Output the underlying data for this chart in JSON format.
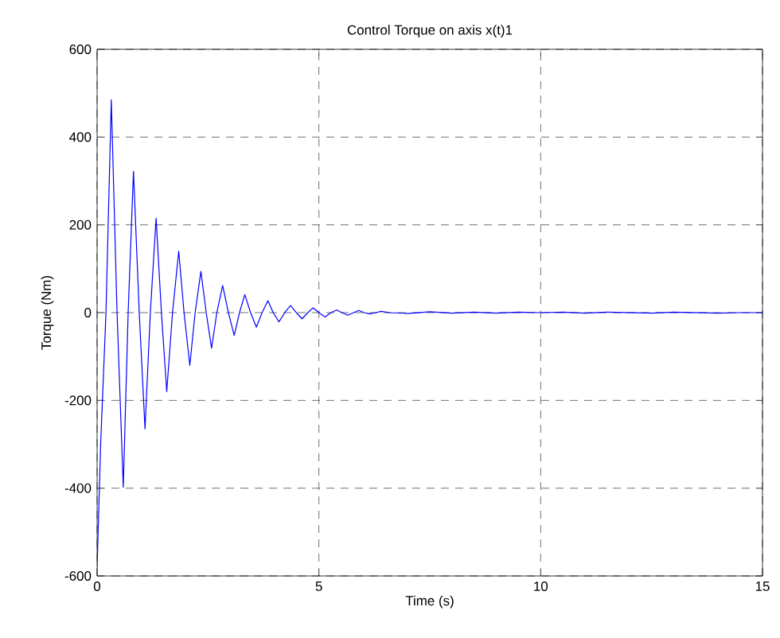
{
  "chart_data": {
    "type": "line",
    "title": "Control Torque on axis x(t)1",
    "xlabel": "Time (s)",
    "ylabel": "Torque (Nm)",
    "xlim": [
      0,
      15
    ],
    "ylim": [
      -600,
      600
    ],
    "xticks": [
      0,
      5,
      10,
      15
    ],
    "yticks": [
      -600,
      -400,
      -200,
      0,
      200,
      400,
      600
    ],
    "grid": true,
    "line_style": "solid",
    "series": [
      {
        "color": "#0000ff",
        "x": [
          0,
          0.08,
          0.2,
          0.32,
          0.45,
          0.59,
          0.7,
          0.82,
          0.95,
          1.08,
          1.2,
          1.33,
          1.45,
          1.57,
          1.7,
          1.84,
          1.96,
          2.09,
          2.21,
          2.34,
          2.46,
          2.58,
          2.7,
          2.83,
          2.96,
          3.09,
          3.21,
          3.33,
          3.46,
          3.59,
          3.72,
          3.85,
          3.97,
          4.1,
          4.23,
          4.36,
          4.49,
          4.62,
          4.75,
          4.87,
          5.0,
          5.14,
          5.27,
          5.4,
          5.52,
          5.65,
          5.78,
          5.9,
          6.02,
          6.15,
          6.28,
          6.4,
          6.6,
          7,
          7.5,
          8,
          8.5,
          9,
          9.5,
          10,
          10.5,
          11,
          11.5,
          12,
          12.5,
          13,
          13.5,
          14,
          14.5,
          15
        ],
        "values": [
          -580,
          -300,
          0,
          485,
          0,
          -398,
          0,
          322,
          0,
          -265,
          0,
          215,
          0,
          -180,
          0,
          140,
          0,
          -120,
          0,
          94,
          0,
          -81,
          0,
          62,
          0,
          -52,
          0,
          41,
          0,
          -33,
          0,
          27,
          0,
          -21,
          0,
          16,
          0,
          -14,
          0,
          11,
          0,
          -10,
          0,
          6,
          0,
          -6,
          0,
          5,
          0,
          -3,
          0,
          3,
          0,
          -2,
          2,
          -1,
          1,
          -1,
          1,
          0,
          1,
          -1,
          1,
          0,
          -1,
          1,
          0,
          -1,
          0,
          0
        ]
      }
    ]
  }
}
